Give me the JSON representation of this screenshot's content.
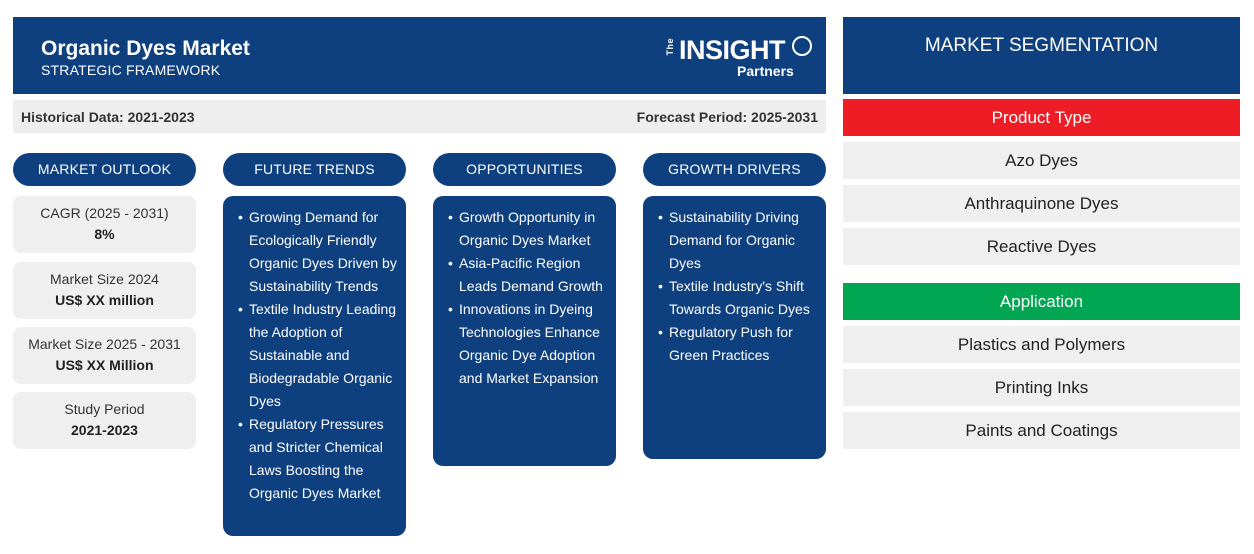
{
  "header": {
    "title": "Organic Dyes Market",
    "subtitle": "STRATEGIC FRAMEWORK",
    "logo": {
      "the": "The",
      "insight": "INSIGHT",
      "partners": "Partners"
    }
  },
  "periods": {
    "historical": "Historical Data: 2021-2023",
    "forecast": "Forecast Period: 2025-2031"
  },
  "market_outlook": {
    "heading": "MARKET OUTLOOK",
    "stats": [
      {
        "label": "CAGR (2025 - 2031)",
        "value": "8%"
      },
      {
        "label": "Market Size 2024",
        "value": "US$ XX million"
      },
      {
        "label": "Market Size 2025 - 2031",
        "value": "US$ XX Million"
      },
      {
        "label": "Study Period",
        "value": "2021-2023"
      }
    ]
  },
  "future_trends": {
    "heading": "FUTURE TRENDS",
    "items": [
      "Growing Demand for Ecologically Friendly Organic Dyes Driven by Sustainability Trends",
      "Textile Industry Leading the Adoption of Sustainable and Biodegradable Organic Dyes",
      "Regulatory Pressures and Stricter Chemical Laws Boosting the Organic Dyes Market"
    ]
  },
  "opportunities": {
    "heading": "OPPORTUNITIES",
    "items": [
      "Growth Opportunity in Organic Dyes Market",
      "Asia-Pacific Region Leads Demand Growth",
      "Innovations in Dyeing Technologies Enhance Organic Dye Adoption and Market Expansion"
    ]
  },
  "growth_drivers": {
    "heading": "GROWTH DRIVERS",
    "items": [
      "Sustainability Driving Demand for Organic Dyes",
      "Textile Industry's Shift Towards Organic Dyes",
      "Regulatory Push for Green Practices"
    ]
  },
  "segmentation": {
    "heading": "MARKET SEGMENTATION",
    "categories": [
      {
        "name": "Product Type",
        "color": "#ee1c25",
        "items": [
          "Azo Dyes",
          "Anthraquinone Dyes",
          "Reactive Dyes"
        ]
      },
      {
        "name": "Application",
        "color": "#00a651",
        "items": [
          "Plastics and Polymers",
          "Printing Inks",
          "Paints and Coatings"
        ]
      }
    ]
  },
  "colors": {
    "primary": "#0e3f7e",
    "panel": "#efefef"
  }
}
